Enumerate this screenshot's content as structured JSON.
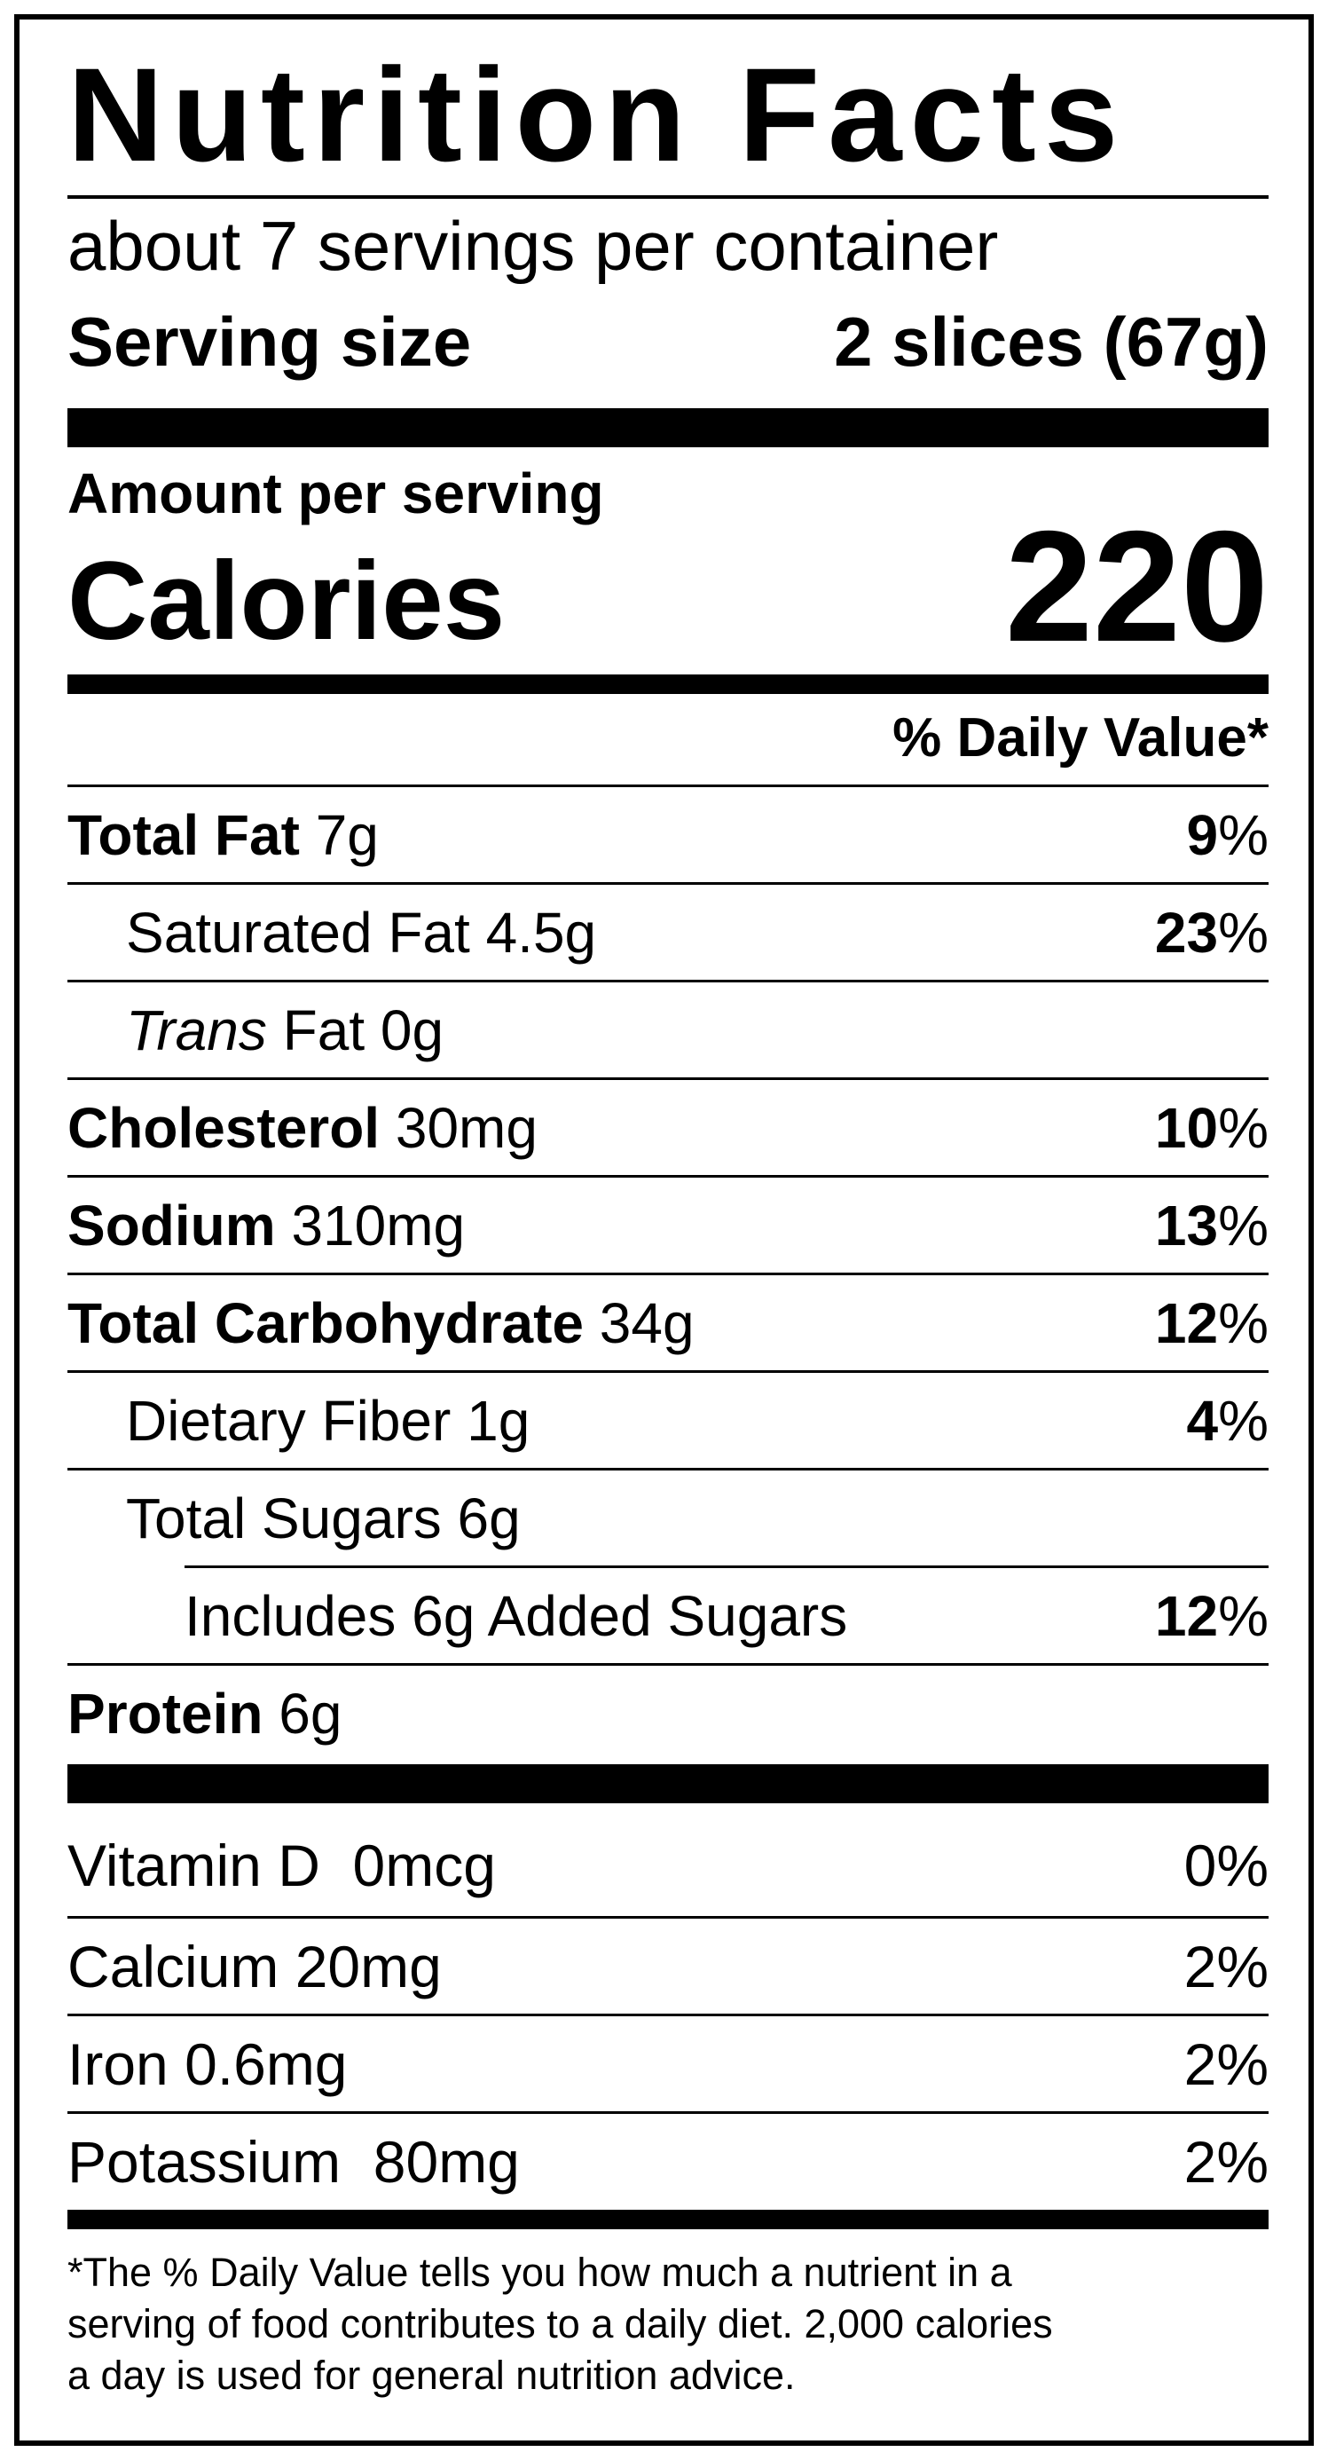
{
  "label": {
    "title": "Nutrition Facts",
    "servings_per_container": "about 7 servings per container",
    "serving_size_label": "Serving size",
    "serving_size_value": "2 slices (67g)",
    "amount_per_serving": "Amount per serving",
    "calories_label": "Calories",
    "calories_value": "220",
    "daily_value_header": "% Daily Value*",
    "nutrients": [
      {
        "name": "Total Fat",
        "amount": "7g",
        "pct_num": "9",
        "pct_sign": "%"
      },
      {
        "name": "Saturated Fat",
        "amount": "4.5g",
        "pct_num": "23",
        "pct_sign": "%"
      },
      {
        "name": "Trans",
        "name_suffix": "Fat",
        "amount": "0g"
      },
      {
        "name": "Cholesterol",
        "amount": "30mg",
        "pct_num": "10",
        "pct_sign": "%"
      },
      {
        "name": "Sodium",
        "amount": "310mg",
        "pct_num": "13",
        "pct_sign": "%"
      },
      {
        "name": "Total Carbohydrate",
        "amount": "34g",
        "pct_num": "12",
        "pct_sign": "%"
      },
      {
        "name": "Dietary Fiber",
        "amount": "1g",
        "pct_num": "4",
        "pct_sign": "%"
      },
      {
        "name": "Total Sugars",
        "amount": "6g"
      },
      {
        "text": "Includes 6g Added Sugars",
        "pct_num": "12",
        "pct_sign": "%"
      },
      {
        "name": "Protein",
        "amount": "6g"
      }
    ],
    "vitamins": [
      {
        "text": "Vitamin D  0mcg",
        "pct": "0%"
      },
      {
        "text": "Calcium 20mg",
        "pct": "2%"
      },
      {
        "text": "Iron 0.6mg",
        "pct": "2%"
      },
      {
        "text": "Potassium  80mg",
        "pct": "2%"
      }
    ],
    "footnote": [
      "*The % Daily Value tells you how much a nutrient in a",
      "serving of food contributes to a daily diet. 2,000 calories",
      "a day is used for general nutrition advice."
    ]
  }
}
